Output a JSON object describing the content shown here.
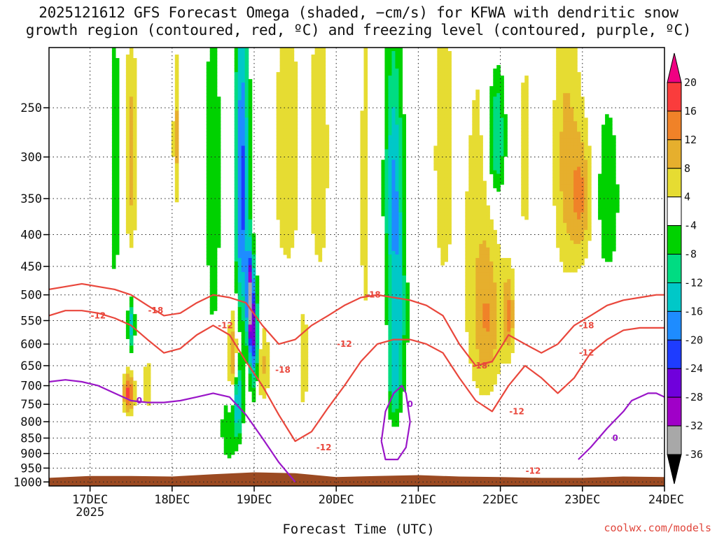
{
  "title_lines": [
    "2025121612 GFS Forecast Omega (shaded, −cm/s) for KFWA with dendritic snow",
    "growth region (contoured, red, ºC) and freezing level (contoured, purple, ºC)"
  ],
  "xlabel": "Forecast Time (UTC)",
  "credit": "coolwx.com/models",
  "chart_data": {
    "type": "heatmap",
    "y_axis": {
      "scale": "log-pressure",
      "inverted": true,
      "ticks": [
        250,
        300,
        350,
        400,
        450,
        500,
        550,
        600,
        650,
        700,
        750,
        800,
        850,
        900,
        950,
        1000
      ],
      "tick_labels": [
        "250",
        "300",
        "350",
        "400",
        "450",
        "500",
        "550",
        "600",
        "650",
        "700",
        "750",
        "800",
        "850",
        "900",
        "950",
        "1000"
      ],
      "ylim": [
        200,
        1015
      ]
    },
    "x_axis": {
      "tick_labels": [
        "17DEC",
        "18DEC",
        "19DEC",
        "20DEC",
        "21DEC",
        "22DEC",
        "23DEC",
        "24DEC"
      ],
      "tick_days": [
        17,
        18,
        19,
        20,
        21,
        22,
        23,
        24
      ],
      "year_label": "2025",
      "xlim": [
        16.5,
        24.0
      ]
    },
    "grid": true,
    "colorbar": {
      "levels": [
        -36,
        -32,
        -28,
        -24,
        -20,
        -16,
        -12,
        -8,
        -4,
        4,
        8,
        12,
        16,
        20
      ],
      "labels": [
        "20",
        "16",
        "12",
        "8",
        "4",
        "-4",
        "-8",
        "-12",
        "-16",
        "-20",
        "-24",
        "-28",
        "-32",
        "-36"
      ],
      "colors": {
        "lt_m32": "#a8a8a8",
        "m32_m28": "#a000c8",
        "m28_m24": "#7000dc",
        "m24_m20": "#1e3cff",
        "m20_m16": "#1e8cff",
        "m16_m12": "#00c8c8",
        "m12_m8": "#00dc82",
        "m8_m4": "#00d200",
        "m4_4": "#ffffff",
        "4_8": "#e6dc32",
        "8_12": "#e6af2d",
        "12_16": "#f08228",
        "16_20": "#fa3c3c",
        "gt_20": "#f00082",
        "below_min": "#000000"
      }
    },
    "shading_blobs": [
      {
        "t": 17.5,
        "p": 300,
        "dt": 0.05,
        "dp": 90,
        "v": 10
      },
      {
        "t": 17.47,
        "p": 720,
        "dt": 0.05,
        "dp": 40,
        "v": 17
      },
      {
        "t": 17.5,
        "p": 560,
        "dt": 0.03,
        "dp": 40,
        "v": -14
      },
      {
        "t": 17.3,
        "p": 320,
        "dt": 0.05,
        "dp": 130,
        "v": -7
      },
      {
        "t": 17.7,
        "p": 700,
        "dt": 0.06,
        "dp": 60,
        "v": 6
      },
      {
        "t": 18.05,
        "p": 280,
        "dt": 0.03,
        "dp": 60,
        "v": 9
      },
      {
        "t": 18.5,
        "p": 330,
        "dt": 0.07,
        "dp": 200,
        "v": -7
      },
      {
        "t": 18.75,
        "p": 650,
        "dt": 0.05,
        "dp": 90,
        "v": 14
      },
      {
        "t": 18.8,
        "p": 730,
        "dt": 0.04,
        "dp": 70,
        "v": -20
      },
      {
        "t": 18.85,
        "p": 340,
        "dt": 0.06,
        "dp": 150,
        "v": -22
      },
      {
        "t": 18.95,
        "p": 510,
        "dt": 0.03,
        "dp": 60,
        "v": -30
      },
      {
        "t": 19.0,
        "p": 600,
        "dt": 0.04,
        "dp": 80,
        "v": -22
      },
      {
        "t": 19.1,
        "p": 650,
        "dt": 0.06,
        "dp": 70,
        "v": 9
      },
      {
        "t": 18.7,
        "p": 820,
        "dt": 0.08,
        "dp": 80,
        "v": -8
      },
      {
        "t": 19.4,
        "p": 300,
        "dt": 0.15,
        "dp": 150,
        "v": 6
      },
      {
        "t": 19.8,
        "p": 300,
        "dt": 0.1,
        "dp": 150,
        "v": 6
      },
      {
        "t": 19.6,
        "p": 650,
        "dt": 0.05,
        "dp": 100,
        "v": 6
      },
      {
        "t": 20.35,
        "p": 350,
        "dt": 0.05,
        "dp": 180,
        "v": 6
      },
      {
        "t": 20.7,
        "p": 330,
        "dt": 0.08,
        "dp": 110,
        "v": -15
      },
      {
        "t": 20.75,
        "p": 560,
        "dt": 0.08,
        "dp": 130,
        "v": -12
      },
      {
        "t": 20.7,
        "p": 700,
        "dt": 0.05,
        "dp": 80,
        "v": -8
      },
      {
        "t": 21.3,
        "p": 300,
        "dt": 0.1,
        "dp": 150,
        "v": 6
      },
      {
        "t": 21.75,
        "p": 420,
        "dt": 0.18,
        "dp": 220,
        "v": 6
      },
      {
        "t": 21.85,
        "p": 560,
        "dt": 0.12,
        "dp": 100,
        "v": 8
      },
      {
        "t": 22.1,
        "p": 540,
        "dt": 0.05,
        "dp": 60,
        "v": 12
      },
      {
        "t": 21.95,
        "p": 280,
        "dt": 0.08,
        "dp": 50,
        "v": -15
      },
      {
        "t": 22.8,
        "p": 300,
        "dt": 0.12,
        "dp": 120,
        "v": 9
      },
      {
        "t": 23.0,
        "p": 350,
        "dt": 0.1,
        "dp": 60,
        "v": 11
      },
      {
        "t": 23.3,
        "p": 350,
        "dt": 0.12,
        "dp": 90,
        "v": -7
      },
      {
        "t": 22.3,
        "p": 300,
        "dt": 0.08,
        "dp": 120,
        "v": 5
      }
    ],
    "dendritic_contours": [
      {
        "level": -18,
        "color": "#e9473c",
        "t": [
          16.5,
          16.7,
          16.9,
          17.1,
          17.3,
          17.5,
          17.7,
          17.9,
          18.1,
          18.3,
          18.5,
          18.7,
          18.9,
          19.1,
          19.3,
          19.5,
          19.7,
          19.9,
          20.1,
          20.3,
          20.5,
          20.7,
          20.9,
          21.1,
          21.3,
          21.5,
          21.7,
          21.9,
          22.1,
          22.3,
          22.5,
          22.7,
          22.9,
          23.1,
          23.3,
          23.5,
          23.7,
          23.9,
          24.0
        ],
        "p": [
          490,
          485,
          480,
          485,
          490,
          500,
          520,
          540,
          535,
          515,
          500,
          505,
          515,
          560,
          600,
          590,
          560,
          540,
          520,
          505,
          500,
          505,
          510,
          520,
          540,
          600,
          650,
          640,
          580,
          600,
          620,
          600,
          560,
          540,
          520,
          510,
          505,
          500,
          500
        ]
      },
      {
        "level": -12,
        "color": "#e9473c",
        "t": [
          16.5,
          16.7,
          16.9,
          17.1,
          17.3,
          17.5,
          17.7,
          17.9,
          18.1,
          18.3,
          18.5,
          18.7,
          18.9,
          19.1,
          19.3,
          19.5,
          19.7,
          19.9,
          20.1,
          20.3,
          20.5,
          20.7,
          20.9,
          21.1,
          21.3,
          21.5,
          21.7,
          21.9,
          22.1,
          22.3,
          22.5,
          22.7,
          22.9,
          23.1,
          23.3,
          23.5,
          23.7,
          23.9,
          24.0
        ],
        "p": [
          540,
          530,
          530,
          535,
          545,
          560,
          590,
          620,
          610,
          580,
          560,
          580,
          640,
          700,
          780,
          860,
          830,
          760,
          700,
          640,
          600,
          590,
          590,
          600,
          620,
          680,
          740,
          770,
          700,
          650,
          680,
          720,
          680,
          620,
          590,
          570,
          565,
          565,
          565
        ]
      }
    ],
    "freezing_contours": [
      {
        "level": 0,
        "color": "#9a16c8",
        "t": [
          16.5,
          16.7,
          16.9,
          17.1,
          17.3,
          17.5,
          17.7,
          17.9,
          18.1,
          18.3,
          18.5,
          18.7,
          18.9,
          19.1,
          19.3,
          19.5
        ],
        "p": [
          690,
          685,
          690,
          700,
          720,
          740,
          745,
          745,
          740,
          730,
          720,
          730,
          780,
          850,
          930,
          1000
        ]
      },
      {
        "level": 0,
        "color": "#9a16c8",
        "t": [
          20.55,
          20.6,
          20.7,
          20.8,
          20.85,
          20.9,
          20.85,
          20.75,
          20.6,
          20.55
        ],
        "p": [
          860,
          770,
          720,
          700,
          720,
          800,
          880,
          920,
          920,
          860
        ]
      },
      {
        "level": 0,
        "color": "#9a16c8",
        "t": [
          22.95,
          23.1,
          23.3,
          23.5,
          23.6,
          23.7,
          23.8,
          23.9,
          24.0
        ],
        "p": [
          920,
          880,
          820,
          770,
          740,
          730,
          720,
          720,
          730
        ]
      }
    ],
    "contour_labels": [
      {
        "text": "-18",
        "t": 17.8,
        "p": 530,
        "color": "#e9473c"
      },
      {
        "text": "-12",
        "t": 17.1,
        "p": 540,
        "color": "#e9473c"
      },
      {
        "text": "-12",
        "t": 18.65,
        "p": 560,
        "color": "#e9473c"
      },
      {
        "text": "-18",
        "t": 19.35,
        "p": 660,
        "color": "#e9473c"
      },
      {
        "text": "-12",
        "t": 19.85,
        "p": 880,
        "color": "#e9473c"
      },
      {
        "text": "-12",
        "t": 20.1,
        "p": 600,
        "color": "#e9473c"
      },
      {
        "text": "-18",
        "t": 20.45,
        "p": 500,
        "color": "#e9473c"
      },
      {
        "text": "-18",
        "t": 21.75,
        "p": 650,
        "color": "#e9473c"
      },
      {
        "text": "-12",
        "t": 22.2,
        "p": 770,
        "color": "#e9473c"
      },
      {
        "text": "-12",
        "t": 22.4,
        "p": 960,
        "color": "#e9473c"
      },
      {
        "text": "-12",
        "t": 23.05,
        "p": 620,
        "color": "#e9473c"
      },
      {
        "text": "-18",
        "t": 23.05,
        "p": 560,
        "color": "#e9473c"
      },
      {
        "text": "0",
        "t": 17.6,
        "p": 740,
        "color": "#9a16c8"
      },
      {
        "text": "0",
        "t": 20.9,
        "p": 750,
        "color": "#9a16c8"
      },
      {
        "text": "0",
        "t": 23.4,
        "p": 850,
        "color": "#9a16c8"
      }
    ],
    "terrain": {
      "color": "#9b4a22",
      "t": [
        16.5,
        17.0,
        17.5,
        18.0,
        18.5,
        19.0,
        19.5,
        20.0,
        20.5,
        21.0,
        21.5,
        22.0,
        22.5,
        23.0,
        23.5,
        24.0
      ],
      "p": [
        985,
        978,
        978,
        980,
        972,
        965,
        968,
        982,
        978,
        975,
        980,
        982,
        985,
        985,
        980,
        982
      ]
    }
  }
}
